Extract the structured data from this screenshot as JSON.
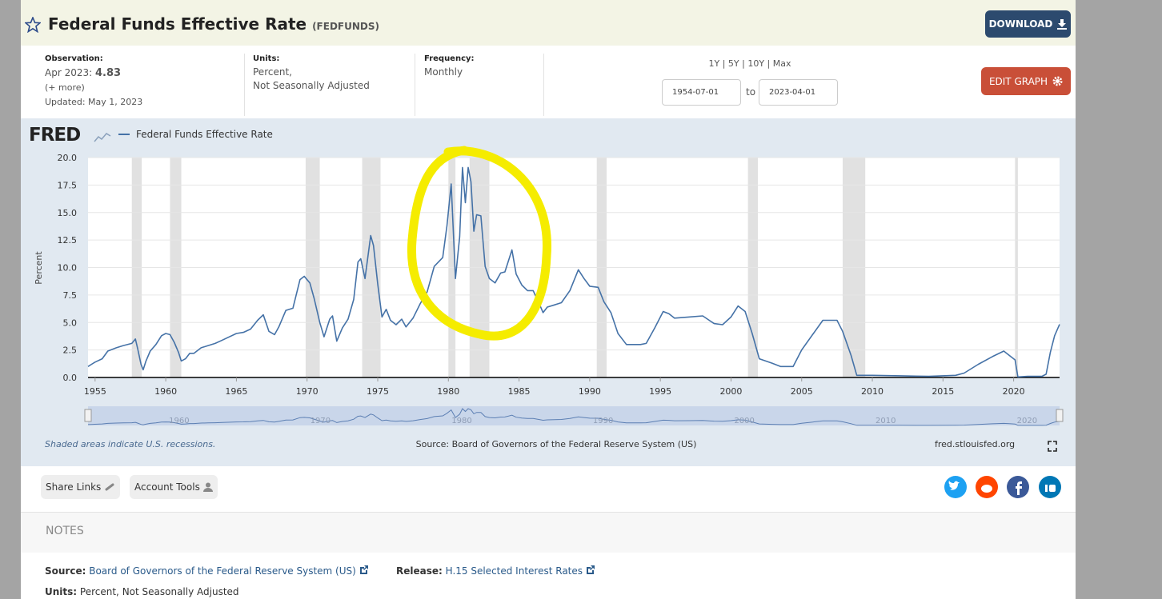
{
  "header": {
    "title": "Federal Funds Effective Rate",
    "series_id": "(FEDFUNDS)",
    "download": "DOWNLOAD"
  },
  "info": {
    "observation_label": "Observation:",
    "observation_date": "Apr 2023:",
    "observation_value": "4.83",
    "more": "(+ more)",
    "updated": "Updated: May 1, 2023",
    "units_label": "Units:",
    "units_line1": "Percent,",
    "units_line2": "Not Seasonally Adjusted",
    "frequency_label": "Frequency:",
    "frequency": "Monthly",
    "ranges": "1Y | 5Y | 10Y | Max",
    "start_date": "1954-07-01",
    "to": "to",
    "end_date": "2023-04-01",
    "edit": "EDIT GRAPH"
  },
  "chart_data": {
    "type": "line",
    "brand": "FRED",
    "y_label": "Percent",
    "x": [
      1954.5,
      1954.75,
      1955,
      1955.5,
      1955.9,
      1956.5,
      1957,
      1957.6,
      1957.85,
      1958,
      1958.25,
      1958.4,
      1958.6,
      1958.9,
      1959.3,
      1959.7,
      1960,
      1960.3,
      1960.6,
      1960.9,
      1961.1,
      1961.4,
      1961.7,
      1962,
      1962.5,
      1963,
      1963.5,
      1964,
      1965,
      1965.5,
      1966,
      1966.5,
      1966.9,
      1967.3,
      1967.7,
      1968,
      1968.5,
      1969,
      1969.5,
      1969.8,
      1970.2,
      1970.5,
      1970.9,
      1971.2,
      1971.6,
      1971.8,
      1972.1,
      1972.5,
      1972.9,
      1973.3,
      1973.6,
      1973.8,
      1974.1,
      1974.5,
      1974.7,
      1975,
      1975.3,
      1975.6,
      1975.9,
      1976.3,
      1976.7,
      1977,
      1977.5,
      1978,
      1978.5,
      1979,
      1979.6,
      1979.9,
      1980.2,
      1980.5,
      1980.8,
      1981,
      1981.2,
      1981.4,
      1981.6,
      1981.8,
      1982,
      1982.3,
      1982.6,
      1982.9,
      1983.3,
      1983.7,
      1984,
      1984.5,
      1984.8,
      1985.2,
      1985.6,
      1986,
      1986.4,
      1986.7,
      1987,
      1987.5,
      1988,
      1988.6,
      1989.2,
      1989.6,
      1990,
      1990.6,
      1991,
      1991.5,
      1992,
      1992.6,
      1993,
      1993.6,
      1994,
      1994.6,
      1995.2,
      1995.6,
      1996,
      1997,
      1998,
      1998.8,
      1999.4,
      2000,
      2000.5,
      2001,
      2001.5,
      2002,
      2002.9,
      2003.5,
      2004.4,
      2005,
      2006.5,
      2007.5,
      2007.9,
      2008.5,
      2008.9,
      2010,
      2012,
      2014,
      2015.9,
      2016.5,
      2017.5,
      2018.5,
      2019.3,
      2019.7,
      2020.1,
      2020.3,
      2021,
      2022,
      2022.3,
      2022.6,
      2022.9,
      2023.25
    ],
    "series": [
      {
        "name": "Federal Funds Effective Rate",
        "color": "#4572a7",
        "values": [
          1.0,
          1.2,
          1.4,
          1.7,
          2.4,
          2.7,
          2.9,
          3.1,
          3.5,
          2.7,
          1.2,
          0.7,
          1.5,
          2.4,
          3.0,
          3.8,
          4.0,
          3.9,
          3.2,
          2.3,
          1.5,
          1.7,
          2.2,
          2.2,
          2.7,
          2.9,
          3.1,
          3.4,
          4.0,
          4.1,
          4.4,
          5.2,
          5.7,
          4.2,
          3.9,
          4.6,
          6.1,
          6.3,
          8.9,
          9.2,
          8.6,
          7.2,
          5.0,
          3.7,
          5.3,
          5.6,
          3.3,
          4.5,
          5.3,
          7.1,
          10.5,
          10.8,
          9.0,
          12.9,
          12.0,
          8.5,
          5.5,
          6.2,
          5.2,
          4.8,
          5.3,
          4.6,
          5.4,
          6.7,
          7.8,
          10.1,
          10.9,
          13.8,
          17.6,
          9.0,
          12.8,
          19.1,
          15.9,
          19.1,
          17.8,
          13.3,
          14.8,
          14.7,
          10.1,
          9.0,
          8.6,
          9.5,
          9.6,
          11.6,
          9.4,
          8.4,
          7.9,
          7.9,
          6.8,
          5.9,
          6.4,
          6.6,
          6.8,
          7.9,
          9.8,
          9.0,
          8.3,
          8.2,
          6.9,
          5.9,
          4.0,
          3.0,
          3.0,
          3.0,
          3.1,
          4.5,
          6.0,
          5.8,
          5.4,
          5.5,
          5.6,
          4.9,
          4.8,
          5.5,
          6.5,
          6.0,
          4.0,
          1.7,
          1.3,
          1.0,
          1.0,
          2.5,
          5.2,
          5.2,
          4.2,
          2.0,
          0.2,
          0.2,
          0.15,
          0.1,
          0.2,
          0.4,
          1.2,
          1.9,
          2.4,
          2.0,
          1.6,
          0.05,
          0.1,
          0.1,
          0.3,
          2.3,
          3.8,
          4.83
        ]
      }
    ],
    "xlim": [
      1954.5,
      2023.25
    ],
    "ylim": [
      0,
      20
    ],
    "xticks": [
      1955,
      1960,
      1965,
      1970,
      1975,
      1980,
      1985,
      1990,
      1995,
      2000,
      2005,
      2010,
      2015,
      2020
    ],
    "yticks": [
      {
        "value": 0,
        "label": "0.0"
      },
      {
        "value": 2.5,
        "label": "2.5"
      },
      {
        "value": 5,
        "label": "5.0"
      },
      {
        "value": 7.5,
        "label": "7.5"
      },
      {
        "value": 10,
        "label": "10.0"
      },
      {
        "value": 12.5,
        "label": "12.5"
      },
      {
        "value": 15,
        "label": "15.0"
      },
      {
        "value": 17.5,
        "label": "17.5"
      },
      {
        "value": 20,
        "label": "20.0"
      }
    ],
    "grid": true,
    "recessions": [
      [
        1957.6,
        1958.3
      ],
      [
        1960.3,
        1961.1
      ],
      [
        1969.9,
        1970.9
      ],
      [
        1973.9,
        1975.2
      ],
      [
        1980.0,
        1980.5
      ],
      [
        1981.5,
        1982.9
      ],
      [
        1990.5,
        1991.2
      ],
      [
        2001.2,
        2001.9
      ],
      [
        2007.9,
        2009.5
      ],
      [
        2020.1,
        2020.3
      ]
    ],
    "recession_note": "Shaded areas indicate U.S. recessions.",
    "source": "Source: Board of Governors of the Federal Reserve System (US)",
    "site": "fred.stlouisfed.org"
  },
  "toolbar": {
    "share": "Share Links",
    "account": "Account Tools"
  },
  "notes": {
    "heading": "NOTES",
    "source_label": "Source:",
    "source": "Board of Governors of the Federal Reserve System (US)",
    "release_label": "Release:",
    "release": "H.15 Selected Interest Rates",
    "units_label": "Units:",
    "units": "Percent, Not Seasonally Adjusted"
  }
}
